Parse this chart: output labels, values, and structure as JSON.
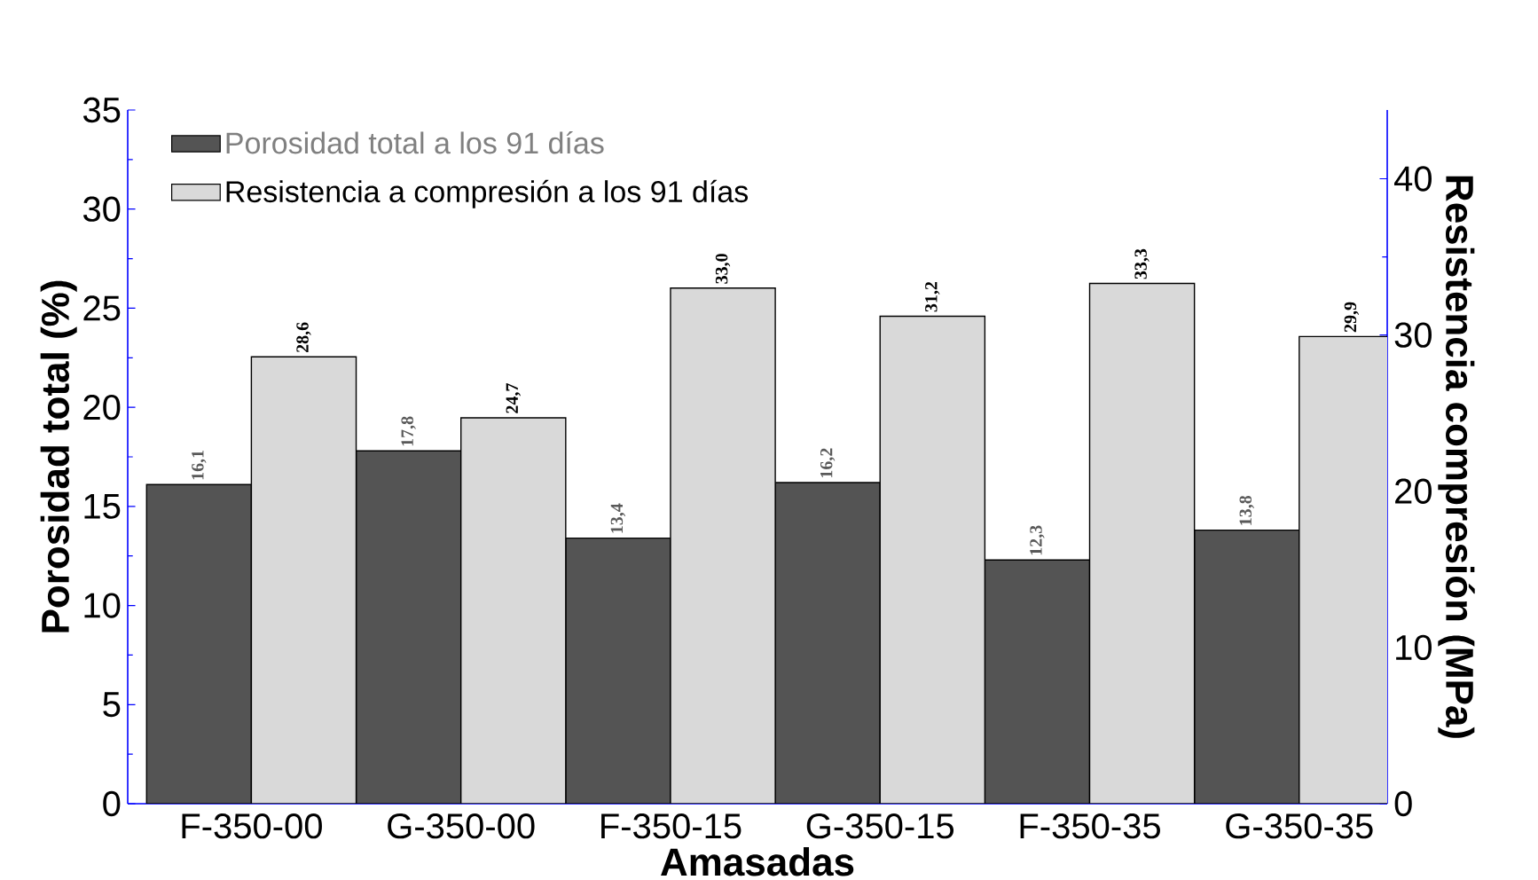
{
  "chart_data": {
    "type": "bar",
    "xlabel": "Amasadas",
    "ylabel": "Porosidad total (%)",
    "y2label": "Resistencia compresión (MPa)",
    "categories": [
      "F-350-00",
      "G-350-00",
      "F-350-15",
      "G-350-15",
      "F-350-35",
      "G-350-35"
    ],
    "series": [
      {
        "name": "Porosidad total a los 91 días",
        "color": "#545454",
        "values": [
          16.1,
          17.8,
          13.4,
          16.2,
          12.3,
          13.8
        ],
        "value_labels": [
          "16,1",
          "17,8",
          "13,4",
          "16,2",
          "12,3",
          "13,8"
        ]
      },
      {
        "name": "Resistencia a compresión a los 91 días",
        "color": "#d9d9d9",
        "axis": "y2",
        "values": [
          28.6,
          24.7,
          33.0,
          31.2,
          33.3,
          29.9
        ],
        "value_labels": [
          "28,6",
          "24,7",
          "33,0",
          "31,2",
          "33,3",
          "29,9"
        ]
      }
    ],
    "ylim": [
      0,
      35
    ],
    "yticks": [
      0,
      5,
      10,
      15,
      20,
      25,
      30,
      35
    ],
    "y2lim": [
      0,
      44.4
    ],
    "y2ticks": [
      0,
      10,
      20,
      30,
      40
    ],
    "legend": "top left"
  }
}
